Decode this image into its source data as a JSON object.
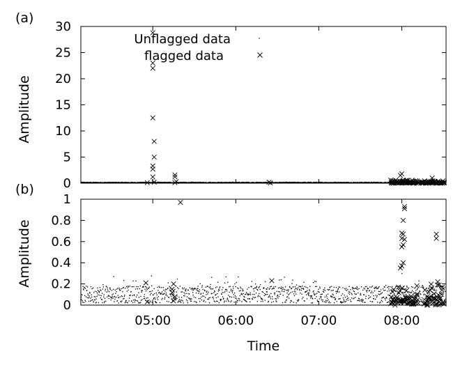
{
  "panel_labels": {
    "a": "(a)",
    "b": "(b)"
  },
  "chart_data": [
    {
      "type": "scatter",
      "panel": "(a)",
      "ylabel": "Amplitude",
      "xlabel": "",
      "x_unit": "time (HH:MM)",
      "xlim": [
        "04:08",
        "08:32"
      ],
      "ylim": [
        0,
        30
      ],
      "yticks": [
        0,
        5,
        10,
        15,
        20,
        25,
        30
      ],
      "xticks": [
        "05:00",
        "06:00",
        "07:00",
        "08:00"
      ],
      "show_x_tick_labels": false,
      "legend": {
        "placement": "top-right",
        "entries": [
          {
            "label": "Unflagged data",
            "marker": "dot"
          },
          {
            "label": "flagged data",
            "marker": "x"
          }
        ]
      },
      "unflagged_segments": [
        {
          "x_start": "04:08",
          "x_end": "08:32",
          "y": 0.05,
          "density": "continuous"
        }
      ],
      "flagged_points": [
        {
          "x": "04:56",
          "y": 0.1
        },
        {
          "x": "05:00",
          "y": 28.8
        },
        {
          "x": "05:00",
          "y": 23.0
        },
        {
          "x": "05:00",
          "y": 22.0
        },
        {
          "x": "05:00",
          "y": 12.5
        },
        {
          "x": "05:01",
          "y": 8.0
        },
        {
          "x": "05:01",
          "y": 5.0
        },
        {
          "x": "05:00",
          "y": 3.3
        },
        {
          "x": "05:00",
          "y": 2.7
        },
        {
          "x": "05:00",
          "y": 1.2
        },
        {
          "x": "05:01",
          "y": 0.2
        },
        {
          "x": "05:16",
          "y": 1.6
        },
        {
          "x": "05:16",
          "y": 1.2
        },
        {
          "x": "05:17",
          "y": 0.3
        },
        {
          "x": "05:16",
          "y": 0.1
        },
        {
          "x": "06:24",
          "y": 0.2
        },
        {
          "x": "06:25",
          "y": 0.05
        },
        {
          "x": "07:53",
          "y": 0.05
        },
        {
          "x": "07:56",
          "y": 0.1
        },
        {
          "x": "07:59",
          "y": 1.5
        },
        {
          "x": "08:00",
          "y": 1.8
        },
        {
          "x": "08:01",
          "y": 0.6
        },
        {
          "x": "08:03",
          "y": 0.3
        },
        {
          "x": "08:06",
          "y": 0.1
        },
        {
          "x": "08:09",
          "y": 0.2
        },
        {
          "x": "08:15",
          "y": 0.1
        },
        {
          "x": "08:20",
          "y": 0.2
        },
        {
          "x": "08:22",
          "y": 1.0
        },
        {
          "x": "08:24",
          "y": 0.3
        },
        {
          "x": "08:28",
          "y": 0.1
        }
      ],
      "flagged_clusters": [
        {
          "x_start": "07:52",
          "x_end": "08:12",
          "y_max": 0.6
        },
        {
          "x_start": "08:14",
          "x_end": "08:31",
          "y_max": 0.5
        }
      ]
    },
    {
      "type": "scatter",
      "panel": "(b)",
      "ylabel": "Amplitude",
      "xlabel": "Time",
      "xlim": [
        "04:08",
        "08:32"
      ],
      "ylim": [
        0,
        1
      ],
      "yticks": [
        0,
        0.2,
        0.4,
        0.6,
        0.8,
        1
      ],
      "xticks": [
        "05:00",
        "06:00",
        "07:00",
        "08:00"
      ],
      "unflagged_noise": {
        "x_start": "04:08",
        "x_end": "08:32",
        "y_range": [
          0,
          0.3
        ],
        "typical": 0.1
      },
      "flagged_points": [
        {
          "x": "05:20",
          "y": 0.97
        },
        {
          "x": "04:55",
          "y": 0.21
        },
        {
          "x": "04:56",
          "y": 0.03
        },
        {
          "x": "05:15",
          "y": 0.2
        },
        {
          "x": "05:14",
          "y": 0.12
        },
        {
          "x": "05:16",
          "y": 0.08
        },
        {
          "x": "05:15",
          "y": 0.04
        },
        {
          "x": "05:14",
          "y": 0.15
        },
        {
          "x": "06:26",
          "y": 0.23
        },
        {
          "x": "08:02",
          "y": 0.93
        },
        {
          "x": "08:02",
          "y": 0.91
        },
        {
          "x": "08:01",
          "y": 0.8
        },
        {
          "x": "08:00",
          "y": 0.68
        },
        {
          "x": "08:01",
          "y": 0.67
        },
        {
          "x": "08:00",
          "y": 0.63
        },
        {
          "x": "08:02",
          "y": 0.62
        },
        {
          "x": "08:01",
          "y": 0.57
        },
        {
          "x": "08:00",
          "y": 0.55
        },
        {
          "x": "08:01",
          "y": 0.4
        },
        {
          "x": "08:00",
          "y": 0.37
        },
        {
          "x": "07:59",
          "y": 0.35
        },
        {
          "x": "08:25",
          "y": 0.67
        },
        {
          "x": "08:25",
          "y": 0.63
        },
        {
          "x": "08:26",
          "y": 0.22
        },
        {
          "x": "08:27",
          "y": 0.19
        }
      ],
      "flagged_clusters": [
        {
          "x_start": "07:52",
          "x_end": "08:12",
          "y_max": 0.2
        },
        {
          "x_start": "08:16",
          "x_end": "08:31",
          "y_max": 0.2
        }
      ]
    }
  ]
}
